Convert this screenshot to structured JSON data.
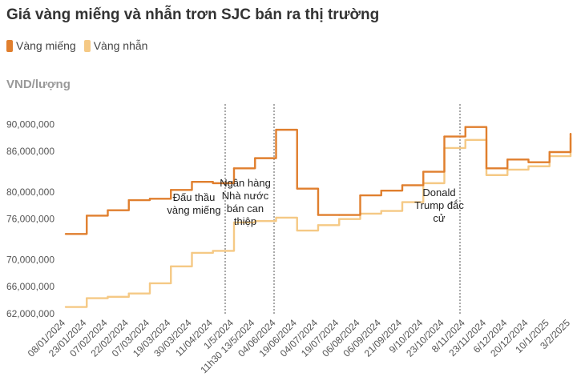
{
  "title": "Giá vàng miếng và nhẫn trơn SJC bán ra thị trường",
  "y_unit": "VND/lượng",
  "colors": {
    "mieng": "#e07f2e",
    "nhan": "#f5c985",
    "vline": "#555555"
  },
  "chart_data": {
    "type": "line",
    "title": "Giá vàng miếng và nhẫn trơn SJC bán ra thị trường",
    "ylabel": "VND/lượng",
    "xlabel": "",
    "ylim": [
      62000000,
      93000000
    ],
    "yticks": [
      "62,000,000",
      "66,000,000",
      "70,000,000",
      "76,000,000",
      "80,000,000",
      "86,000,000",
      "90,000,000"
    ],
    "xticks": [
      "08/01/2024",
      "23/01/2024",
      "07/02/2024",
      "22/02/2024",
      "07/03/2024",
      "19/03/2024",
      "30/03/2024",
      "11/04/2024",
      "1/5/2024",
      "11h30 13/5/2024",
      "04/06/2024",
      "19/06/2024",
      "04/07/2024",
      "19/07/2024",
      "06/08/2024",
      "06/09/2024",
      "21/09/2024",
      "9/10/2024",
      "23/10/2024",
      "8/11/2024",
      "23/11/2024",
      "6/12/2024",
      "20/12/2024",
      "10/1/2025",
      "3/2/2025"
    ],
    "legend_position": "top-left",
    "grid": false,
    "series": [
      {
        "name": "Vàng miếng",
        "values": [
          73800000,
          76500000,
          77300000,
          78800000,
          79000000,
          80300000,
          81500000,
          81300000,
          83500000,
          85000000,
          89200000,
          80500000,
          76600000,
          76600000,
          79500000,
          80200000,
          81000000,
          83000000,
          88200000,
          89600000,
          83500000,
          84800000,
          84400000,
          85900000,
          88600000
        ]
      },
      {
        "name": "Vàng nhẫn",
        "values": [
          63000000,
          64300000,
          64500000,
          65000000,
          66500000,
          69000000,
          71000000,
          71300000,
          75500000,
          75700000,
          76200000,
          74300000,
          75100000,
          76000000,
          76800000,
          77200000,
          78500000,
          81300000,
          86500000,
          87700000,
          82500000,
          83300000,
          83800000,
          85300000,
          88000000
        ]
      }
    ],
    "annotations": [
      {
        "at": "19/04/2024",
        "lines": [
          "Đấu thầu",
          "vàng miếng"
        ]
      },
      {
        "at": "3/6/2024",
        "lines": [
          "Ngân hàng",
          "Nhà nước",
          "bán can",
          "thiệp"
        ]
      },
      {
        "at": "6/11/2024",
        "lines": [
          "Donald",
          "Trump đắc",
          "cử"
        ]
      }
    ]
  }
}
